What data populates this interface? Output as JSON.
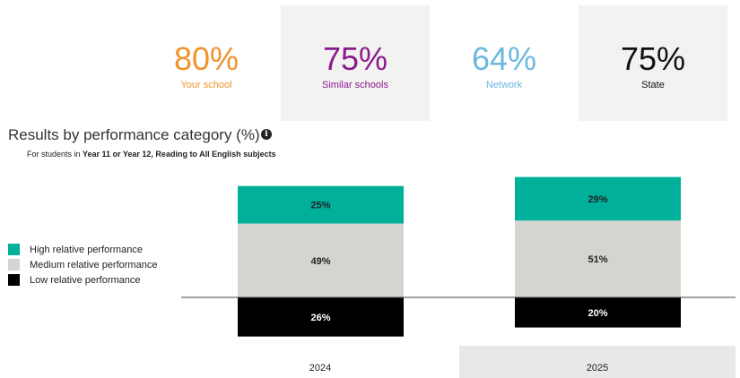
{
  "stats": [
    {
      "value": "80%",
      "label": "Your school",
      "color": "#f0922b",
      "shaded": false
    },
    {
      "value": "75%",
      "label": "Similar schools",
      "color": "#8b1a8f",
      "shaded": true
    },
    {
      "value": "64%",
      "label": "Network",
      "color": "#6cb8dd",
      "shaded": false
    },
    {
      "value": "75%",
      "label": "State",
      "color": "#111111",
      "shaded": true
    }
  ],
  "section": {
    "title": "Results by performance category (%)",
    "info_icon": "info-icon",
    "subtitle_prefix": "For students in ",
    "subtitle_bold": "Year 11 or Year 12, Reading to All English subjects"
  },
  "chart_data": {
    "type": "bar",
    "stacked": true,
    "categories": [
      "2024",
      "2025"
    ],
    "series": [
      {
        "name": "High relative performance",
        "color": "#00b09b",
        "values": [
          25,
          29
        ],
        "labels": [
          "25%",
          "29%"
        ]
      },
      {
        "name": "Medium relative performance",
        "color": "#d4d4d0",
        "values": [
          49,
          51
        ],
        "labels": [
          "49%",
          "51%"
        ]
      },
      {
        "name": "Low relative performance",
        "color": "#000000",
        "values": [
          26,
          20
        ],
        "labels": [
          "26%",
          "20%"
        ]
      }
    ],
    "baseline_between": "Medium relative performance / Low relative performance",
    "highlighted_category": "2025",
    "legend_position": "left"
  }
}
